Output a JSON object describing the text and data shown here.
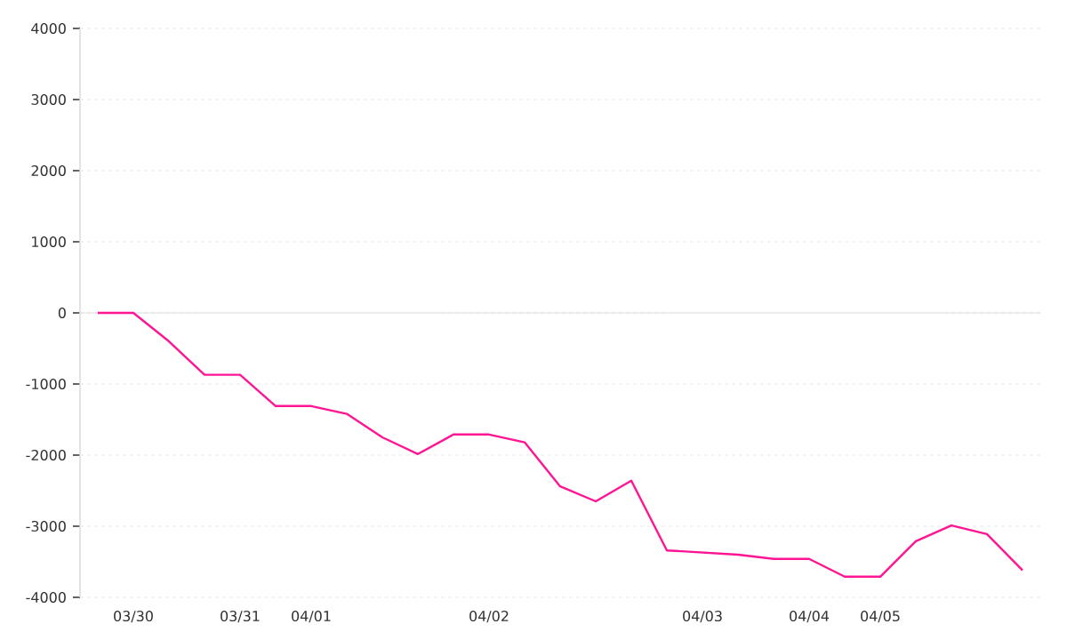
{
  "chart_data": {
    "type": "line",
    "categories": [
      null,
      "03/30",
      null,
      null,
      "03/31",
      null,
      "04/01",
      null,
      null,
      null,
      null,
      "04/02",
      null,
      null,
      null,
      null,
      null,
      "04/03",
      null,
      null,
      "04/04",
      null,
      "04/05",
      null,
      null,
      null,
      null
    ],
    "series": [
      {
        "color": "#ff1493",
        "values": [
          0,
          0,
          -400,
          -870,
          -870,
          -1310,
          -1310,
          -1420,
          -1750,
          -1985,
          -1710,
          -1710,
          -1820,
          -2440,
          -2650,
          -2360,
          -3340,
          -3370,
          -3400,
          -3460,
          -3460,
          -3710,
          -3710,
          -3210,
          -2990,
          -3110,
          -3620
        ]
      }
    ],
    "ylim": [
      -4000,
      4000
    ],
    "yticks": [
      -4000,
      -3000,
      -2000,
      -1000,
      0,
      1000,
      2000,
      3000,
      4000
    ],
    "grid": "y",
    "marker": "none",
    "line_style": "solid",
    "ref_lines": [
      {
        "axis": "y",
        "value": 0,
        "color": "#dddddd"
      }
    ]
  }
}
